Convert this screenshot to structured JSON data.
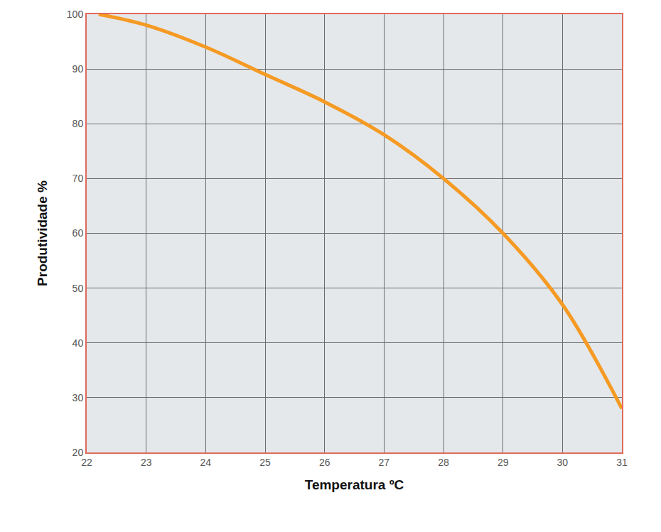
{
  "chart_data": {
    "type": "line",
    "x_label": "Temperatura ºC",
    "y_label": "Produtividade %",
    "x": [
      22.2,
      23,
      24,
      25,
      26,
      27,
      28,
      29,
      30,
      31
    ],
    "values": [
      100,
      98,
      94,
      89,
      84,
      78,
      70,
      60,
      47,
      28
    ],
    "color": "#f59a23",
    "line_style": "solid",
    "xlim": [
      22,
      31
    ],
    "xticks": [
      22,
      23,
      24,
      25,
      26,
      27,
      28,
      29,
      30,
      31
    ],
    "ylim": [
      20,
      100
    ],
    "yticks": [
      20,
      30,
      40,
      50,
      60,
      70,
      80,
      90,
      100
    ],
    "grid": true
  }
}
